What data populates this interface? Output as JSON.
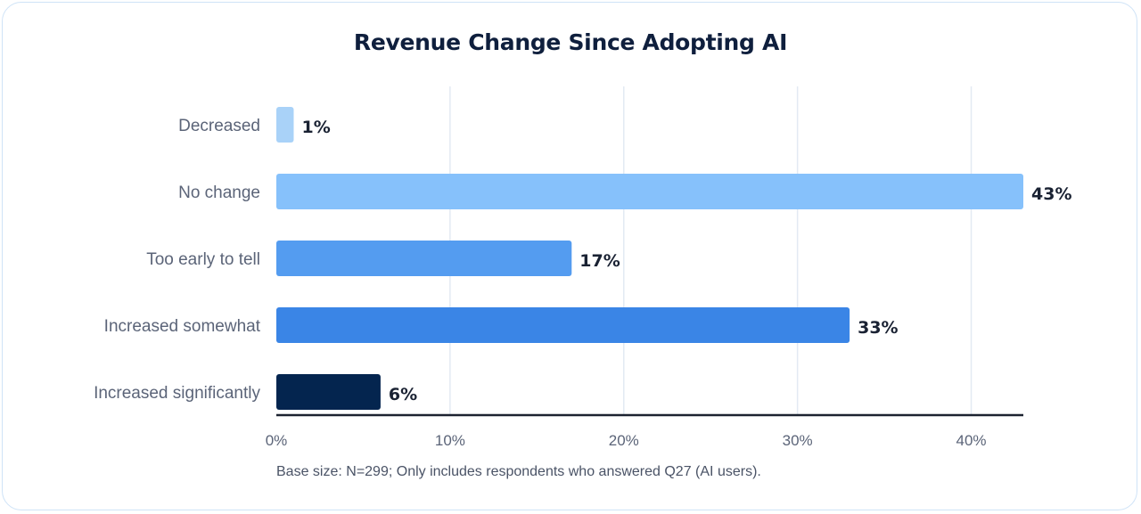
{
  "chart_data": {
    "type": "bar",
    "orientation": "horizontal",
    "title": "Revenue Change Since Adopting AI",
    "categories": [
      "Decreased",
      "No change",
      "Too early to tell",
      "Increased somewhat",
      "Increased significantly"
    ],
    "values": [
      1,
      43,
      17,
      33,
      6
    ],
    "value_labels": [
      "1%",
      "43%",
      "17%",
      "33%",
      "6%"
    ],
    "colors": [
      "#a9d2f8",
      "#86c1fb",
      "#549cf0",
      "#3a85e6",
      "#04254f"
    ],
    "xlim": [
      0,
      43
    ],
    "x_ticks": [
      0,
      10,
      20,
      30,
      40
    ],
    "x_tick_labels": [
      "0%",
      "10%",
      "20%",
      "30%",
      "40%"
    ],
    "grid": true,
    "legend": "none"
  },
  "footnote": "Base size: N=299; Only includes respondents who answered Q27 (AI users)."
}
